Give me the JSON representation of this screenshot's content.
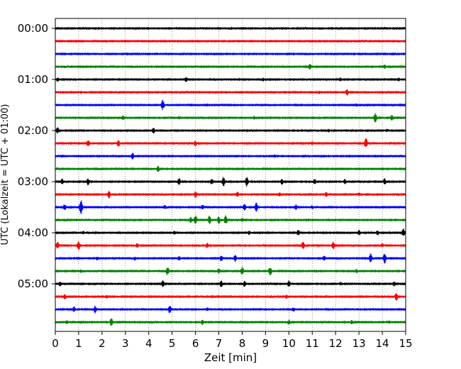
{
  "chart_data": {
    "type": "line",
    "title": "",
    "xlabel": "Zeit  [min]",
    "ylabel": "UTC (Lokalzeit = UTC + 01:00)",
    "xlim": [
      0,
      15
    ],
    "x_ticks": [
      "0",
      "1",
      "2",
      "3",
      "4",
      "5",
      "6",
      "7",
      "8",
      "9",
      "10",
      "11",
      "12",
      "13",
      "14",
      "15"
    ],
    "y_ticks": [
      "00:00",
      "01:00",
      "02:00",
      "03:00",
      "04:00",
      "05:00"
    ],
    "grid": "vertical dotted at each minute",
    "trace_interval_minutes": 15,
    "trace_colors": [
      "#000000",
      "#ff0000",
      "#0000ff",
      "#008000"
    ],
    "traces": [
      {
        "start": "00:00",
        "color": "#000000",
        "events": [
          [
            10.0,
            0.1
          ]
        ]
      },
      {
        "start": "00:15",
        "color": "#ff0000",
        "events": []
      },
      {
        "start": "00:30",
        "color": "#0000ff",
        "events": [
          [
            12.8,
            0.2
          ]
        ]
      },
      {
        "start": "00:45",
        "color": "#008000",
        "events": [
          [
            10.9,
            0.45
          ],
          [
            14.1,
            0.3
          ],
          [
            0.4,
            0.2
          ]
        ]
      },
      {
        "start": "01:00",
        "color": "#000000",
        "events": [
          [
            0.1,
            0.35
          ],
          [
            5.6,
            0.4
          ],
          [
            8.9,
            0.3
          ],
          [
            12.2,
            0.3
          ],
          [
            14.7,
            0.3
          ]
        ]
      },
      {
        "start": "01:15",
        "color": "#ff0000",
        "events": [
          [
            12.5,
            0.5
          ],
          [
            11.3,
            0.25
          ],
          [
            1.1,
            0.2
          ]
        ]
      },
      {
        "start": "01:30",
        "color": "#0000ff",
        "events": [
          [
            4.6,
            0.9
          ],
          [
            6.5,
            0.25
          ],
          [
            12.9,
            0.25
          ]
        ]
      },
      {
        "start": "01:45",
        "color": "#008000",
        "events": [
          [
            13.7,
            0.8
          ],
          [
            14.4,
            0.45
          ],
          [
            2.9,
            0.35
          ],
          [
            8.5,
            0.3
          ],
          [
            5.3,
            0.25
          ]
        ]
      },
      {
        "start": "02:00",
        "color": "#000000",
        "events": [
          [
            0.1,
            0.5
          ],
          [
            4.2,
            0.55
          ],
          [
            14.2,
            0.25
          ],
          [
            11.7,
            0.25
          ]
        ]
      },
      {
        "start": "02:15",
        "color": "#ff0000",
        "events": [
          [
            13.3,
            0.95
          ],
          [
            1.4,
            0.6
          ],
          [
            2.7,
            0.55
          ],
          [
            6.0,
            0.4
          ],
          [
            11.0,
            0.3
          ]
        ]
      },
      {
        "start": "02:30",
        "color": "#0000ff",
        "events": [
          [
            3.3,
            0.6
          ],
          [
            9.4,
            0.25
          ]
        ]
      },
      {
        "start": "02:45",
        "color": "#008000",
        "events": [
          [
            4.4,
            0.5
          ]
        ]
      },
      {
        "start": "03:00",
        "color": "#000000",
        "events": [
          [
            0.3,
            0.5
          ],
          [
            1.4,
            0.55
          ],
          [
            5.3,
            0.6
          ],
          [
            6.7,
            0.55
          ],
          [
            7.2,
            0.8
          ],
          [
            8.2,
            0.85
          ],
          [
            9.7,
            0.5
          ],
          [
            11.1,
            0.45
          ],
          [
            12.4,
            0.45
          ],
          [
            14.1,
            0.55
          ]
        ]
      },
      {
        "start": "03:15",
        "color": "#ff0000",
        "events": [
          [
            2.3,
            0.65
          ],
          [
            6.0,
            0.5
          ],
          [
            7.8,
            0.4
          ],
          [
            11.6,
            0.4
          ],
          [
            9.6,
            0.35
          ],
          [
            13.0,
            0.3
          ]
        ]
      },
      {
        "start": "03:30",
        "color": "#0000ff",
        "events": [
          [
            1.1,
            1.35
          ],
          [
            0.4,
            0.55
          ],
          [
            8.6,
            0.8
          ],
          [
            8.1,
            0.55
          ],
          [
            10.3,
            0.45
          ],
          [
            4.7,
            0.35
          ],
          [
            6.3,
            0.35
          ],
          [
            11.0,
            0.3
          ]
        ]
      },
      {
        "start": "03:45",
        "color": "#008000",
        "events": [
          [
            7.3,
            0.85
          ],
          [
            6.0,
            0.75
          ],
          [
            6.6,
            0.7
          ],
          [
            7.0,
            0.65
          ],
          [
            5.8,
            0.5
          ],
          [
            8.0,
            0.35
          ]
        ]
      },
      {
        "start": "04:00",
        "color": "#000000",
        "events": [
          [
            14.9,
            0.7
          ],
          [
            10.4,
            0.5
          ],
          [
            13.0,
            0.45
          ],
          [
            13.8,
            0.4
          ],
          [
            1.2,
            0.3
          ],
          [
            5.1,
            0.35
          ],
          [
            8.3,
            0.35
          ]
        ]
      },
      {
        "start": "04:15",
        "color": "#ff0000",
        "events": [
          [
            1.0,
            0.75
          ],
          [
            0.1,
            0.6
          ],
          [
            10.6,
            0.75
          ],
          [
            11.9,
            0.6
          ],
          [
            6.5,
            0.4
          ],
          [
            3.5,
            0.4
          ],
          [
            14.0,
            0.35
          ]
        ]
      },
      {
        "start": "04:30",
        "color": "#0000ff",
        "events": [
          [
            14.1,
            0.9
          ],
          [
            13.5,
            0.8
          ],
          [
            7.7,
            0.6
          ],
          [
            7.1,
            0.45
          ],
          [
            11.5,
            0.45
          ],
          [
            3.4,
            0.3
          ],
          [
            5.3,
            0.35
          ],
          [
            1.8,
            0.3
          ]
        ]
      },
      {
        "start": "04:45",
        "color": "#008000",
        "events": [
          [
            9.2,
            0.85
          ],
          [
            8.0,
            0.7
          ],
          [
            4.8,
            0.75
          ],
          [
            7.0,
            0.4
          ],
          [
            1.1,
            0.3
          ],
          [
            12.9,
            0.3
          ]
        ]
      },
      {
        "start": "05:00",
        "color": "#000000",
        "events": [
          [
            4.6,
            0.6
          ],
          [
            7.1,
            0.6
          ],
          [
            8.1,
            0.5
          ],
          [
            10.0,
            0.55
          ],
          [
            14.5,
            0.4
          ],
          [
            0.2,
            0.35
          ],
          [
            12.2,
            0.3
          ]
        ]
      },
      {
        "start": "05:15",
        "color": "#ff0000",
        "events": [
          [
            14.6,
            0.7
          ],
          [
            0.4,
            0.45
          ],
          [
            2.2,
            0.3
          ],
          [
            9.9,
            0.3
          ]
        ]
      },
      {
        "start": "05:30",
        "color": "#0000ff",
        "events": [
          [
            1.7,
            0.65
          ],
          [
            4.9,
            0.75
          ],
          [
            0.8,
            0.5
          ],
          [
            10.2,
            0.35
          ],
          [
            6.5,
            0.3
          ]
        ]
      },
      {
        "start": "05:45",
        "color": "#008000",
        "events": [
          [
            2.4,
            0.65
          ],
          [
            10.0,
            0.4
          ],
          [
            6.3,
            0.4
          ],
          [
            12.7,
            0.35
          ],
          [
            0.5,
            0.3
          ],
          [
            14.3,
            0.3
          ]
        ]
      }
    ]
  }
}
